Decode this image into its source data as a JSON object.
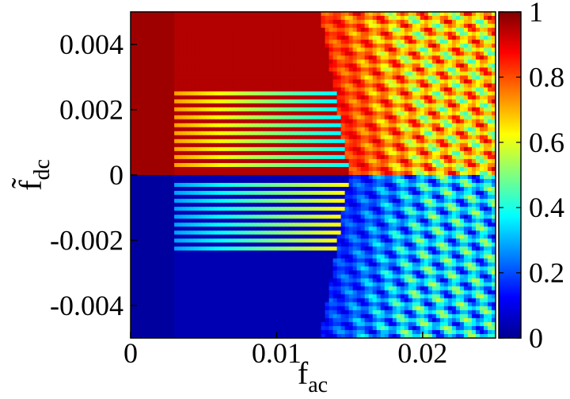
{
  "chart_data": {
    "type": "heatmap",
    "title": "",
    "xlabel": {
      "main": "f",
      "sub": "ac"
    },
    "ylabel": {
      "main": "f̃",
      "sub": "dc"
    },
    "xlim": [
      0,
      0.025
    ],
    "ylim": [
      -0.005,
      0.005
    ],
    "x_ticks": [
      {
        "value": 0,
        "label": "0"
      },
      {
        "value": 0.01,
        "label": "0.01"
      },
      {
        "value": 0.02,
        "label": "0.02"
      }
    ],
    "y_ticks": [
      {
        "value": 0.004,
        "label": "0.004"
      },
      {
        "value": 0.002,
        "label": "0.002"
      },
      {
        "value": 0,
        "label": "0"
      },
      {
        "value": -0.002,
        "label": "-0.002"
      },
      {
        "value": -0.004,
        "label": "-0.004"
      }
    ],
    "colorbar": {
      "range": [
        0,
        1
      ],
      "colormap": "jet",
      "ticks": [
        {
          "value": 0,
          "label": "0"
        },
        {
          "value": 0.2,
          "label": "0.2"
        },
        {
          "value": 0.4,
          "label": "0.4"
        },
        {
          "value": 0.6,
          "label": "0.6"
        },
        {
          "value": 0.8,
          "label": "0.8"
        },
        {
          "value": 1,
          "label": "1"
        }
      ]
    },
    "regions": [
      {
        "f_dc_range": [
          0,
          0.005
        ],
        "f_ac_range": [
          0,
          0.015
        ],
        "value": 0.98
      },
      {
        "f_dc_range": [
          -0.005,
          0
        ],
        "f_ac_range": [
          0,
          0.015
        ],
        "value": 0.03
      },
      {
        "f_dc_range": [
          0,
          0.005
        ],
        "f_ac_range": [
          0.015,
          0.025
        ],
        "value": 0.75
      },
      {
        "f_dc_range": [
          -0.005,
          0
        ],
        "f_ac_range": [
          0.015,
          0.025
        ],
        "value": 0.25
      }
    ],
    "stripe_spacing_f_dc": 0.00025,
    "stripe_onset_f_ac": 0.003,
    "transition_onset_f_ac": 0.015,
    "grid": false,
    "legend": "none"
  }
}
